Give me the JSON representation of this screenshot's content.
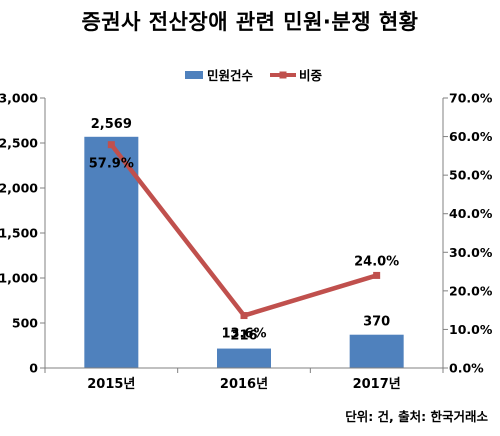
{
  "title": "증권사 전산장애 관련 민원·분쟁 현황",
  "source_note": "단위: 건, 출처: 한국거래소",
  "colors": {
    "bar": "#4f81bd",
    "line": "#c0504d",
    "axis": "#808080"
  },
  "chart_data": {
    "type": "bar",
    "title": "증권사 전산장애 관련 민원·분쟁 현황",
    "categories": [
      "2015년",
      "2016년",
      "2017년"
    ],
    "series": [
      {
        "name": "민원건수",
        "type": "bar",
        "axis": "left",
        "values": [
          2569,
          216,
          370
        ],
        "labels": [
          "2,569",
          "216",
          "370"
        ]
      },
      {
        "name": "비중",
        "type": "line",
        "axis": "right",
        "values": [
          57.9,
          13.6,
          24.0
        ],
        "labels": [
          "57.9%",
          "13.6%",
          "24.0%"
        ]
      }
    ],
    "y_left": {
      "ylim": [
        0,
        3000
      ],
      "ticks": [
        0,
        500,
        1000,
        1500,
        2000,
        2500,
        3000
      ],
      "tick_labels": [
        "0",
        "500",
        "1,000",
        "1,500",
        "2,000",
        "2,500",
        "3,000"
      ]
    },
    "y_right": {
      "ylim": [
        0,
        70
      ],
      "ticks": [
        0,
        10,
        20,
        30,
        40,
        50,
        60,
        70
      ],
      "tick_labels": [
        "0.0%",
        "10.0%",
        "20.0%",
        "30.0%",
        "40.0%",
        "50.0%",
        "60.0%",
        "70.0%"
      ]
    },
    "legend": {
      "position": "top-center"
    },
    "grid": false
  }
}
